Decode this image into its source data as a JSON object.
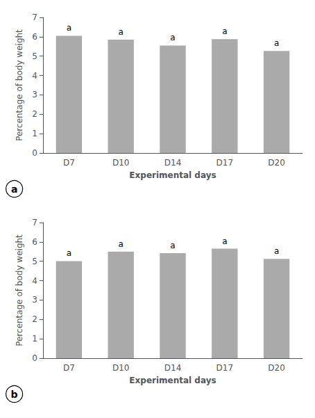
{
  "chart_data": [
    {
      "type": "bar",
      "panel_label": "a",
      "categories": [
        "D7",
        "D10",
        "D14",
        "D17",
        "D20"
      ],
      "values": [
        6.05,
        5.85,
        5.55,
        5.88,
        5.27
      ],
      "annotations": [
        "a",
        "a",
        "a",
        "a",
        "a"
      ],
      "xlabel": "Experimental days",
      "ylabel": "Percentage of body weight",
      "ylim": [
        0,
        7
      ],
      "yticks": [
        0,
        1,
        2,
        3,
        4,
        5,
        6,
        7
      ],
      "color": "#aaaaaa",
      "grid": false
    },
    {
      "type": "bar",
      "panel_label": "b",
      "categories": [
        "D7",
        "D10",
        "D14",
        "D17",
        "D20"
      ],
      "values": [
        5.01,
        5.5,
        5.42,
        5.65,
        5.12
      ],
      "annotations": [
        "a",
        "a",
        "a",
        "a",
        "a"
      ],
      "xlabel": "Experimental days",
      "ylabel": "Percentage of body weight",
      "ylim": [
        0,
        7
      ],
      "yticks": [
        0,
        1,
        2,
        3,
        4,
        5,
        6,
        7
      ],
      "color": "#aaaaaa",
      "grid": false
    }
  ]
}
